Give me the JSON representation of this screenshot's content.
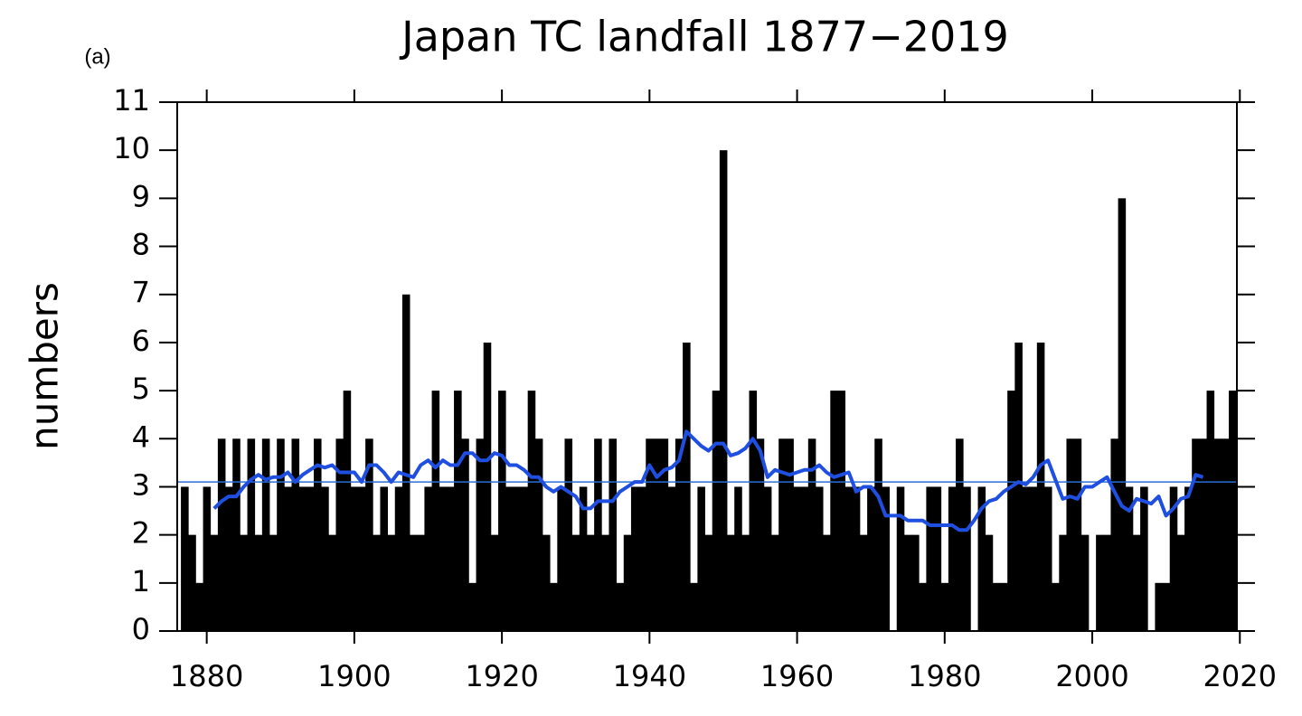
{
  "chart_data": {
    "type": "bar",
    "title": "Japan TC landfall 1877−2019",
    "annotation": "(a)",
    "y_label": "numbers",
    "x": [
      1877,
      1878,
      1879,
      1880,
      1881,
      1882,
      1883,
      1884,
      1885,
      1886,
      1887,
      1888,
      1889,
      1890,
      1891,
      1892,
      1893,
      1894,
      1895,
      1896,
      1897,
      1898,
      1899,
      1900,
      1901,
      1902,
      1903,
      1904,
      1905,
      1906,
      1907,
      1908,
      1909,
      1910,
      1911,
      1912,
      1913,
      1914,
      1915,
      1916,
      1917,
      1918,
      1919,
      1920,
      1921,
      1922,
      1923,
      1924,
      1925,
      1926,
      1927,
      1928,
      1929,
      1930,
      1931,
      1932,
      1933,
      1934,
      1935,
      1936,
      1937,
      1938,
      1939,
      1940,
      1941,
      1942,
      1943,
      1944,
      1945,
      1946,
      1947,
      1948,
      1949,
      1950,
      1951,
      1952,
      1953,
      1954,
      1955,
      1956,
      1957,
      1958,
      1959,
      1960,
      1961,
      1962,
      1963,
      1964,
      1965,
      1966,
      1967,
      1968,
      1969,
      1970,
      1971,
      1972,
      1973,
      1974,
      1975,
      1976,
      1977,
      1978,
      1979,
      1980,
      1981,
      1982,
      1983,
      1984,
      1985,
      1986,
      1987,
      1988,
      1989,
      1990,
      1991,
      1992,
      1993,
      1994,
      1995,
      1996,
      1997,
      1998,
      1999,
      2000,
      2001,
      2002,
      2003,
      2004,
      2005,
      2006,
      2007,
      2008,
      2009,
      2010,
      2011,
      2012,
      2013,
      2014,
      2015,
      2016,
      2017,
      2018,
      2019
    ],
    "values": [
      3,
      2,
      1,
      3,
      2,
      4,
      3,
      4,
      2,
      4,
      2,
      4,
      2,
      4,
      3,
      4,
      3,
      3,
      4,
      3,
      2,
      4,
      5,
      3,
      3,
      4,
      2,
      3,
      2,
      3,
      7,
      2,
      2,
      3,
      5,
      3,
      3,
      5,
      4,
      1,
      4,
      6,
      2,
      5,
      3,
      3,
      3,
      5,
      4,
      2,
      1,
      3,
      4,
      2,
      3,
      2,
      4,
      2,
      4,
      1,
      2,
      3,
      3,
      4,
      4,
      4,
      3,
      4,
      6,
      1,
      3,
      2,
      5,
      10,
      2,
      3,
      2,
      5,
      4,
      3,
      2,
      4,
      4,
      3,
      3,
      4,
      3,
      2,
      5,
      5,
      3,
      3,
      2,
      3,
      4,
      3,
      0,
      3,
      2,
      2,
      1,
      3,
      3,
      1,
      3,
      4,
      3,
      0,
      3,
      2,
      1,
      1,
      5,
      6,
      3,
      3,
      6,
      3,
      1,
      2,
      4,
      4,
      2,
      0,
      2,
      2,
      4,
      9,
      3,
      2,
      3,
      0,
      1,
      1,
      3,
      2,
      3,
      4,
      4,
      5,
      4,
      4,
      5
    ],
    "color": "#000000",
    "smooth": {
      "color": "#1f4fe0",
      "x": [
        1881,
        1882,
        1883,
        1884,
        1885,
        1886,
        1887,
        1888,
        1889,
        1890,
        1891,
        1892,
        1893,
        1894,
        1895,
        1896,
        1897,
        1898,
        1899,
        1900,
        1901,
        1902,
        1903,
        1904,
        1905,
        1906,
        1907,
        1908,
        1909,
        1910,
        1911,
        1912,
        1913,
        1914,
        1915,
        1916,
        1917,
        1918,
        1919,
        1920,
        1921,
        1922,
        1923,
        1924,
        1925,
        1926,
        1927,
        1928,
        1929,
        1930,
        1931,
        1932,
        1933,
        1934,
        1935,
        1936,
        1937,
        1938,
        1939,
        1940,
        1941,
        1942,
        1943,
        1944,
        1945,
        1946,
        1947,
        1948,
        1949,
        1950,
        1951,
        1952,
        1953,
        1954,
        1955,
        1956,
        1957,
        1958,
        1959,
        1960,
        1961,
        1962,
        1963,
        1964,
        1965,
        1966,
        1967,
        1968,
        1969,
        1970,
        1971,
        1972,
        1973,
        1974,
        1975,
        1976,
        1977,
        1978,
        1979,
        1980,
        1981,
        1982,
        1983,
        1984,
        1985,
        1986,
        1987,
        1988,
        1989,
        1990,
        1991,
        1992,
        1993,
        1994,
        1995,
        1996,
        1997,
        1998,
        1999,
        2000,
        2001,
        2002,
        2003,
        2004,
        2005,
        2006,
        2007,
        2008,
        2009,
        2010,
        2011,
        2012,
        2013,
        2014,
        2015
      ],
      "values": [
        2.55,
        2.7,
        2.8,
        2.8,
        3.0,
        3.15,
        3.25,
        3.15,
        3.2,
        3.2,
        3.3,
        3.1,
        3.25,
        3.35,
        3.45,
        3.4,
        3.45,
        3.3,
        3.3,
        3.3,
        3.1,
        3.45,
        3.45,
        3.3,
        3.1,
        3.3,
        3.25,
        3.2,
        3.45,
        3.55,
        3.4,
        3.55,
        3.45,
        3.45,
        3.7,
        3.7,
        3.55,
        3.55,
        3.7,
        3.65,
        3.45,
        3.45,
        3.35,
        3.2,
        3.2,
        3.0,
        2.9,
        3.0,
        2.9,
        2.8,
        2.55,
        2.55,
        2.7,
        2.7,
        2.7,
        2.9,
        3.0,
        3.1,
        3.1,
        3.45,
        3.2,
        3.35,
        3.4,
        3.55,
        4.15,
        4.0,
        3.85,
        3.75,
        3.9,
        3.9,
        3.65,
        3.7,
        3.8,
        4.0,
        3.75,
        3.2,
        3.35,
        3.3,
        3.25,
        3.3,
        3.35,
        3.35,
        3.45,
        3.3,
        3.2,
        3.25,
        3.3,
        2.9,
        3.0,
        3.0,
        2.8,
        2.4,
        2.4,
        2.4,
        2.3,
        2.3,
        2.3,
        2.2,
        2.2,
        2.2,
        2.2,
        2.1,
        2.1,
        2.3,
        2.55,
        2.7,
        2.75,
        2.9,
        3.0,
        3.1,
        3.05,
        3.2,
        3.45,
        3.55,
        3.15,
        2.75,
        2.8,
        2.75,
        3.0,
        3.0,
        3.1,
        3.2,
        2.9,
        2.6,
        2.5,
        2.75,
        2.7,
        2.65,
        2.8,
        2.4,
        2.55,
        2.75,
        2.8,
        3.25,
        3.2
      ]
    },
    "mean_line": {
      "value": 3.1,
      "color": "#2a6fd6"
    },
    "xlim": [
      1876,
      2019.6
    ],
    "xticks": [
      1880,
      1900,
      1920,
      1940,
      1960,
      1980,
      2000,
      2020
    ],
    "ylim": [
      0,
      11
    ],
    "yticks": [
      0,
      1,
      2,
      3,
      4,
      5,
      6,
      7,
      8,
      9,
      10,
      11
    ]
  }
}
